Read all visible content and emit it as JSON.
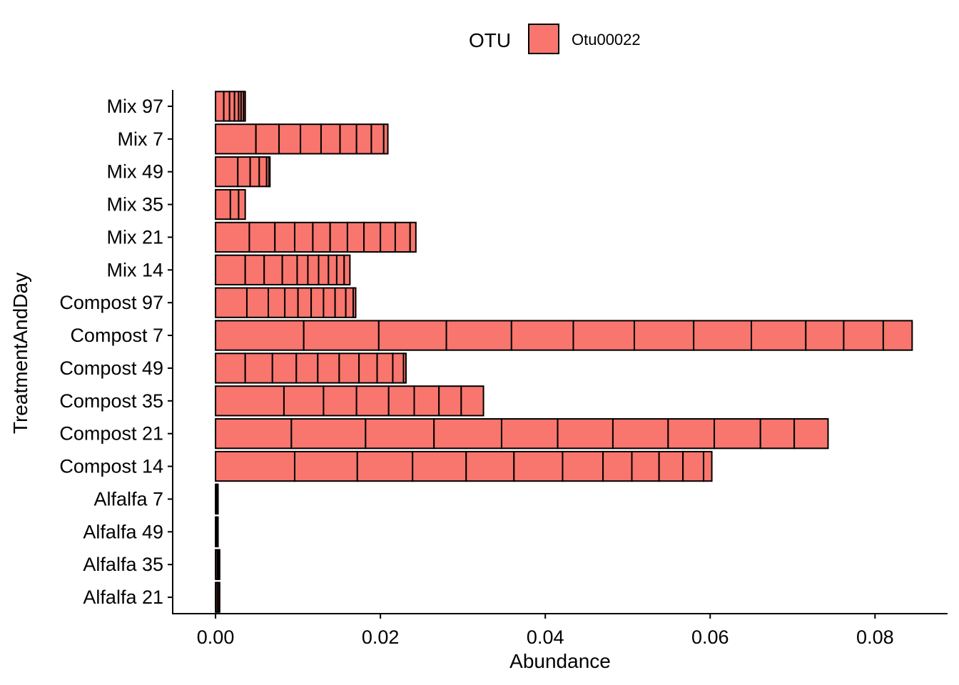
{
  "chart_data": {
    "type": "bar",
    "orientation": "horizontal",
    "stacked": true,
    "xlabel": "Abundance",
    "ylabel": "TreatmentAndDay",
    "xlim": [
      -0.0052,
      0.0888
    ],
    "x_ticks": [
      0.0,
      0.02,
      0.04,
      0.06,
      0.08
    ],
    "x_tick_labels": [
      "0.00",
      "0.02",
      "0.04",
      "0.06",
      "0.08"
    ],
    "grid": false,
    "legend": {
      "title": "OTU",
      "position": "top",
      "entries": [
        {
          "name": "Otu00022",
          "color": "#F8766D"
        }
      ]
    },
    "categories": [
      "Mix 97",
      "Mix 7",
      "Mix 49",
      "Mix 35",
      "Mix 21",
      "Mix 14",
      "Compost 97",
      "Compost 7",
      "Compost 49",
      "Compost 35",
      "Compost 21",
      "Compost 14",
      "Alfalfa 7",
      "Alfalfa 49",
      "Alfalfa 35",
      "Alfalfa 21"
    ],
    "segment_boundaries": [
      [
        0.0,
        0.001,
        0.0017,
        0.0023,
        0.0028,
        0.0031,
        0.0034,
        0.0036
      ],
      [
        0.0,
        0.0049,
        0.0077,
        0.0103,
        0.0128,
        0.0151,
        0.0171,
        0.0189,
        0.0204,
        0.0209
      ],
      [
        0.0,
        0.0027,
        0.0042,
        0.0053,
        0.0062,
        0.0065,
        0.0066
      ],
      [
        0.0,
        0.0018,
        0.0028,
        0.0036
      ],
      [
        0.0,
        0.0041,
        0.0072,
        0.0096,
        0.0118,
        0.0139,
        0.016,
        0.018,
        0.02,
        0.0218,
        0.0236,
        0.0243
      ],
      [
        0.0,
        0.0036,
        0.0059,
        0.0081,
        0.0099,
        0.0112,
        0.0125,
        0.0137,
        0.0147,
        0.0156,
        0.0163
      ],
      [
        0.0,
        0.0038,
        0.0064,
        0.0084,
        0.01,
        0.0116,
        0.0131,
        0.0145,
        0.0158,
        0.0167,
        0.017
      ],
      [
        0.0,
        0.0107,
        0.0198,
        0.028,
        0.0359,
        0.0434,
        0.0508,
        0.058,
        0.065,
        0.0716,
        0.0762,
        0.081,
        0.0845
      ],
      [
        0.0,
        0.0036,
        0.0069,
        0.0098,
        0.0124,
        0.015,
        0.0174,
        0.0196,
        0.0215,
        0.0228,
        0.0231
      ],
      [
        0.0,
        0.0083,
        0.0131,
        0.0171,
        0.021,
        0.0241,
        0.0271,
        0.0298,
        0.0325
      ],
      [
        0.0,
        0.0092,
        0.0182,
        0.0265,
        0.0347,
        0.0415,
        0.0482,
        0.0549,
        0.0605,
        0.0661,
        0.0702,
        0.0743
      ],
      [
        0.0,
        0.0096,
        0.0172,
        0.0239,
        0.0304,
        0.0362,
        0.0421,
        0.047,
        0.0505,
        0.0538,
        0.0567,
        0.0592,
        0.0602
      ],
      [
        0.0,
        0.0001,
        0.0002,
        0.0003
      ],
      [
        0.0,
        0.0001,
        0.0002,
        0.0003
      ],
      [
        0.0,
        0.0002,
        0.0003,
        0.0004,
        0.0005
      ],
      [
        0.0,
        0.0002,
        0.0004,
        0.0005
      ]
    ],
    "totals": [
      0.0036,
      0.0209,
      0.0066,
      0.0036,
      0.0243,
      0.0163,
      0.017,
      0.0845,
      0.0231,
      0.0325,
      0.0743,
      0.0602,
      0.0003,
      0.0003,
      0.0005,
      0.0005
    ],
    "colors": {
      "fill": "#F8766D",
      "outline": "#000000",
      "axis": "#000000"
    }
  }
}
